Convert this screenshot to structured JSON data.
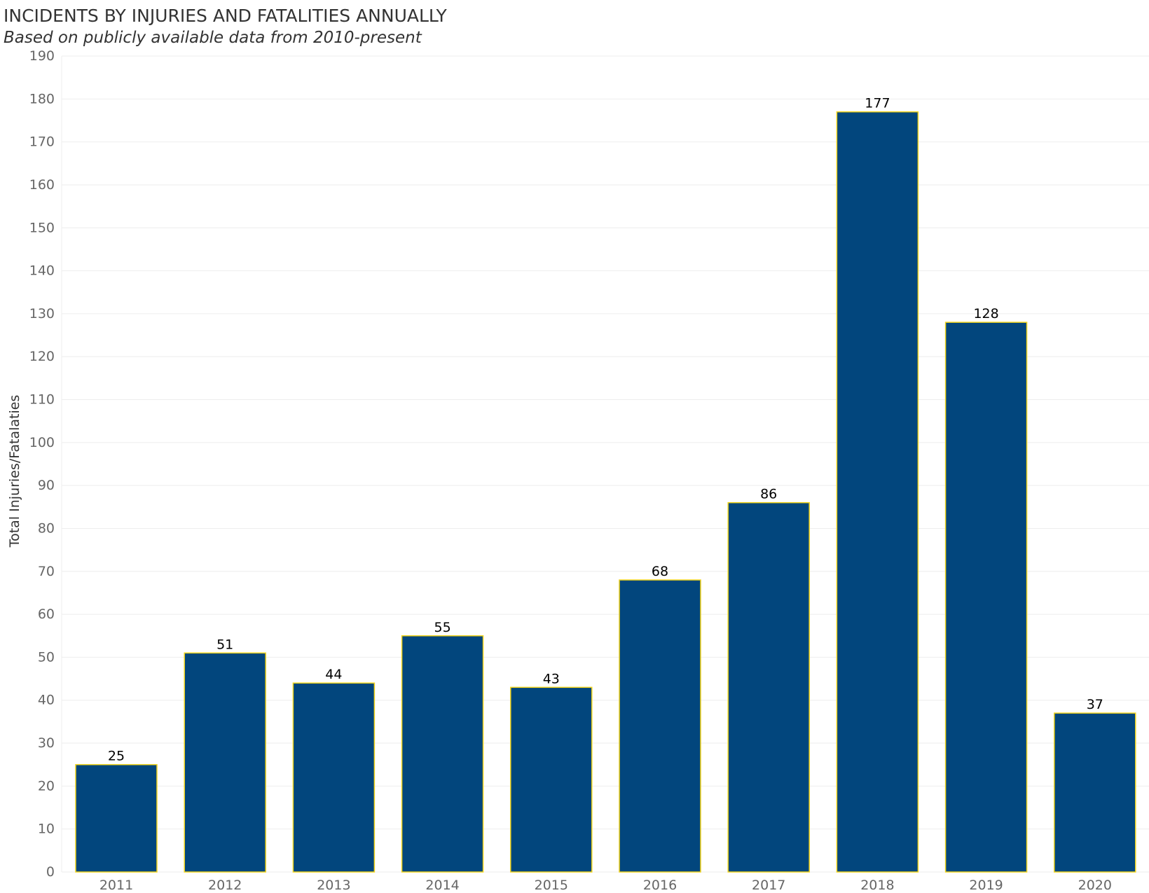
{
  "chart_data": {
    "type": "bar",
    "title": "INCIDENTS BY INJURIES AND FATALITIES ANNUALLY",
    "subtitle": "Based on publicly available data from 2010-present",
    "xlabel": "",
    "ylabel": "Total Injuries/Fatalaties",
    "categories": [
      "2011",
      "2012",
      "2013",
      "2014",
      "2015",
      "2016",
      "2017",
      "2018",
      "2019",
      "2020"
    ],
    "values": [
      25,
      51,
      44,
      55,
      43,
      68,
      86,
      177,
      128,
      37
    ],
    "ylim": [
      0,
      190
    ],
    "yticks": [
      0,
      10,
      20,
      30,
      40,
      50,
      60,
      70,
      80,
      90,
      100,
      110,
      120,
      130,
      140,
      150,
      160,
      170,
      180,
      190
    ],
    "grid": true,
    "data_labels": true,
    "colors": {
      "bar_fill": "#02467D",
      "bar_outline": "#F2D41C",
      "grid": "#EEEEEE"
    }
  }
}
